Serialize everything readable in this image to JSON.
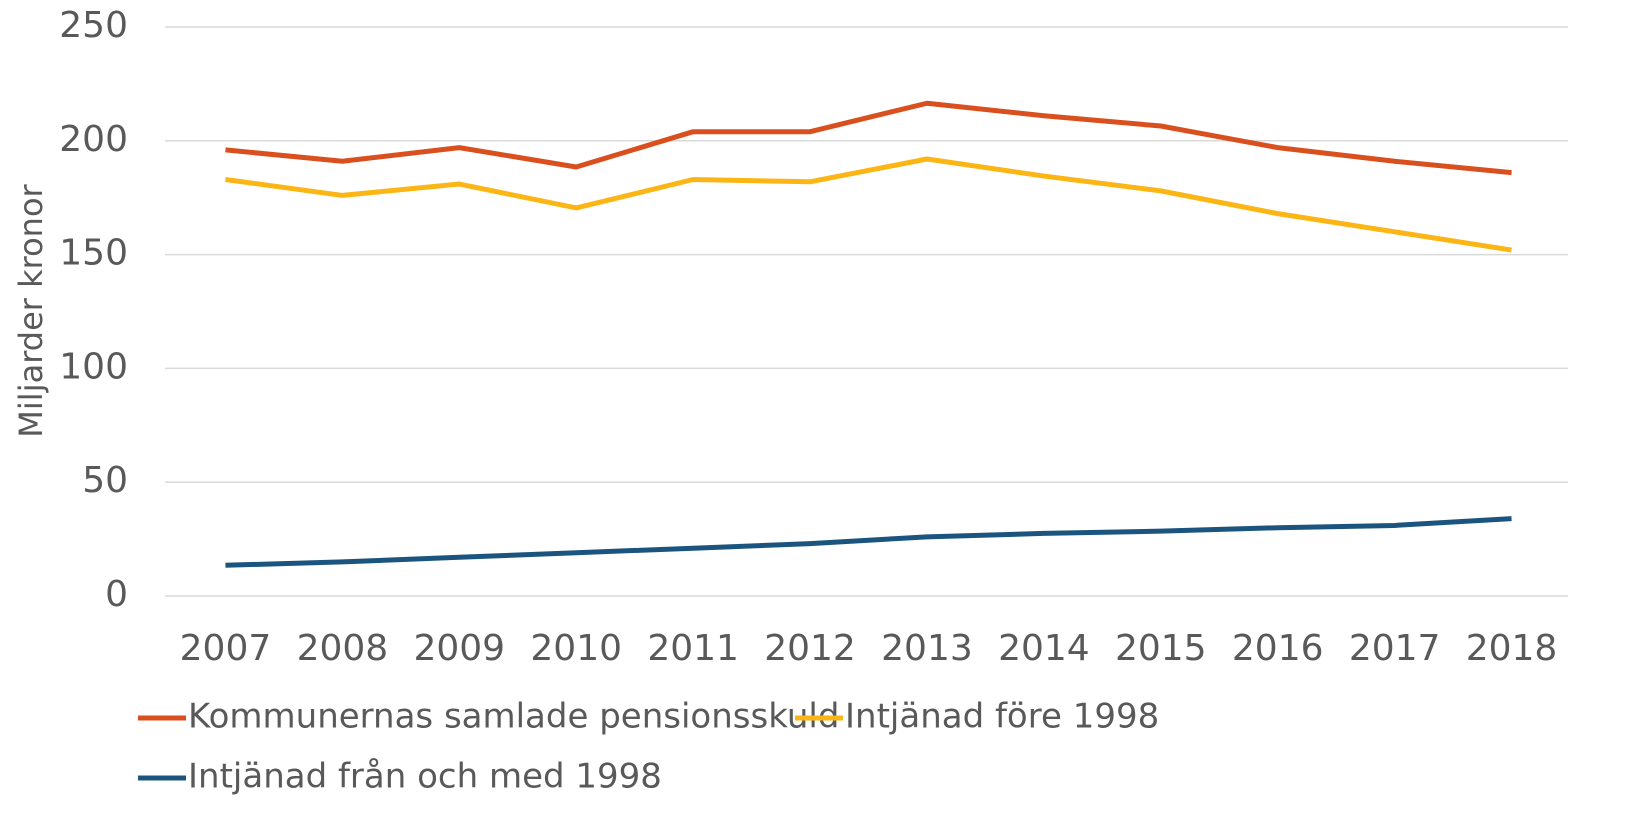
{
  "chart_data": {
    "type": "line",
    "y_label": "Miljarder kronor",
    "categories": [
      "2007",
      "2008",
      "2009",
      "2010",
      "2011",
      "2012",
      "2013",
      "2014",
      "2015",
      "2016",
      "2017",
      "2018"
    ],
    "series": [
      {
        "name": "Kommunernas samlade pensionsskuld",
        "color": "#d9501e",
        "values": [
          196,
          191,
          197,
          188.5,
          204,
          204,
          216.5,
          211,
          206.5,
          197,
          191,
          186
        ]
      },
      {
        "name": "Intjänad före 1998",
        "color": "#fbb616",
        "values": [
          183,
          176,
          181,
          170.5,
          183,
          182,
          192,
          184.5,
          178,
          168,
          160,
          152
        ]
      },
      {
        "name": "Intjänad från och med 1998",
        "color": "#1b557f",
        "values": [
          13.5,
          15,
          17,
          19,
          21,
          23,
          26,
          27.5,
          28.5,
          30,
          31,
          34
        ]
      }
    ],
    "ylim": [
      0,
      250
    ],
    "yticks": [
      0,
      50,
      100,
      150,
      200,
      250
    ],
    "grid": true,
    "legend": "bottom"
  }
}
